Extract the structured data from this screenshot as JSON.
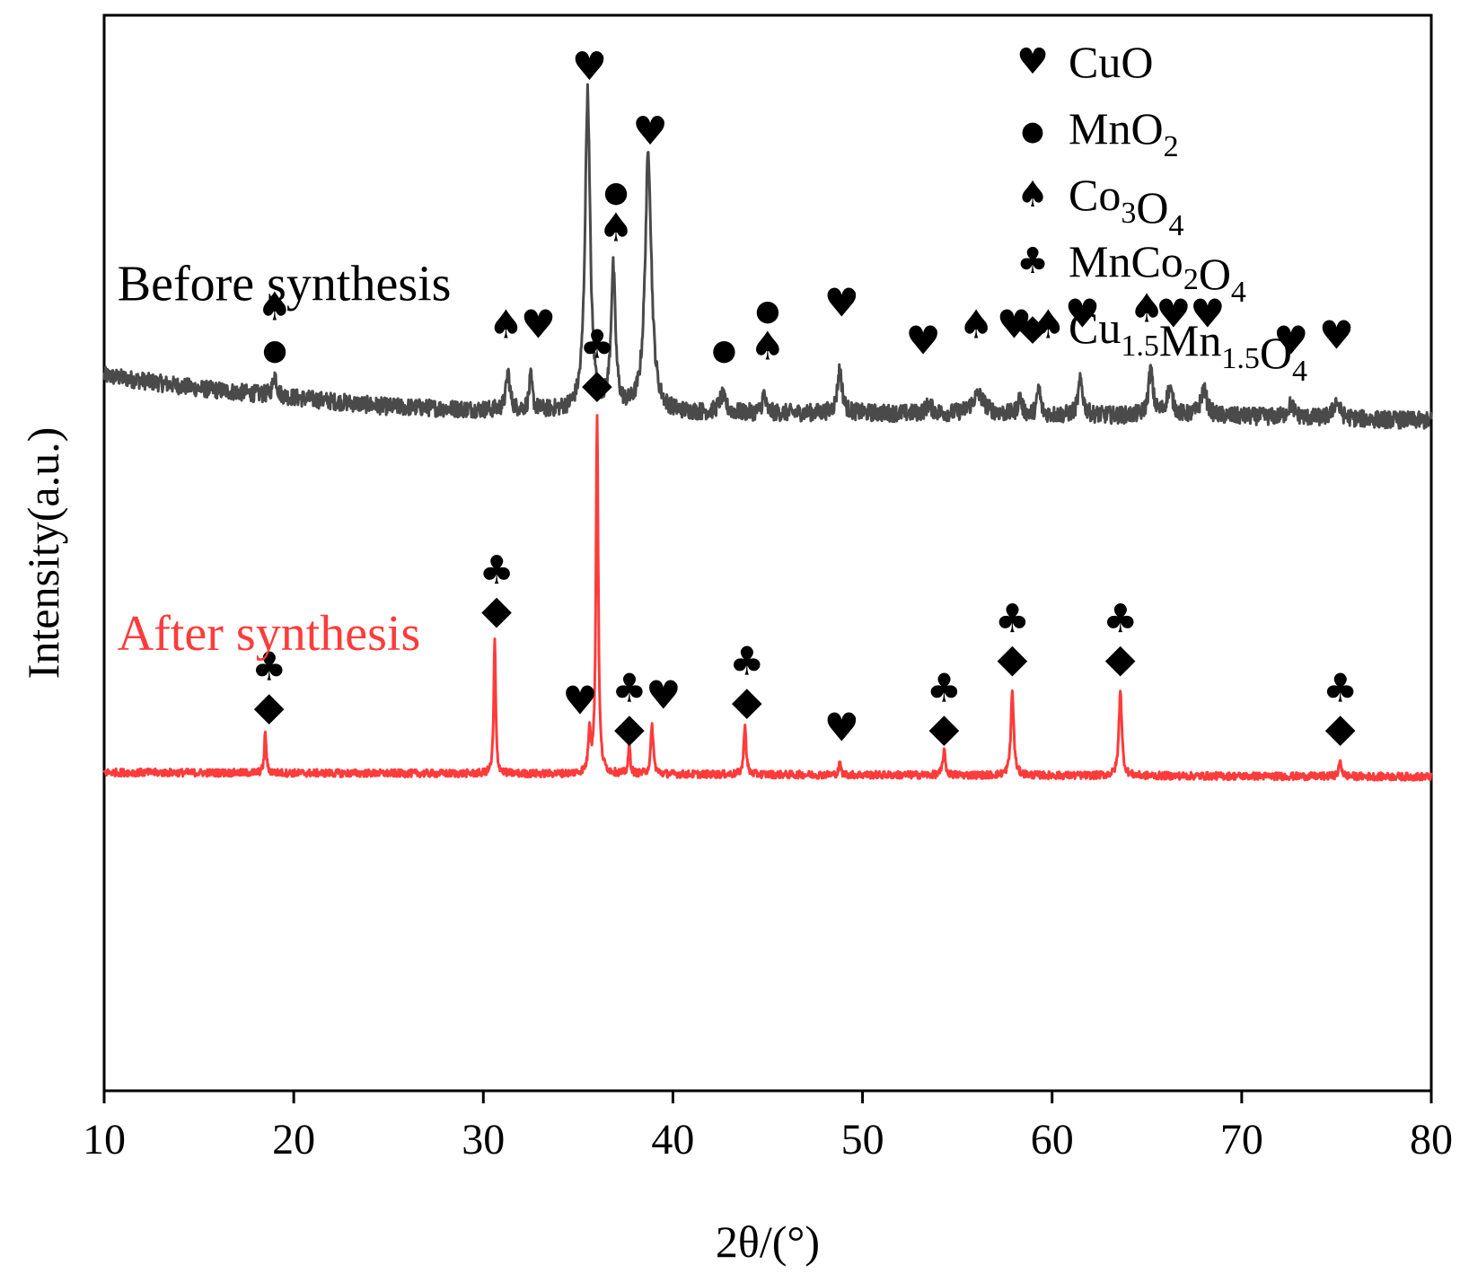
{
  "chart_data": {
    "type": "line",
    "title": "",
    "xlabel": "2θ/(°)",
    "ylabel": "Intensity(a.u.)",
    "xlim": [
      10,
      80
    ],
    "ylim": [
      0,
      100
    ],
    "xticks": [
      10,
      20,
      30,
      40,
      50,
      60,
      70,
      80
    ],
    "xtick_labels": [
      "10",
      "20",
      "30",
      "40",
      "50",
      "60",
      "70",
      "80"
    ],
    "grid": false,
    "legend": {
      "placement": "top-right",
      "entries": [
        {
          "symbol": "heart",
          "label": "CuO",
          "parts": [
            {
              "t": "CuO",
              "sub": false
            }
          ]
        },
        {
          "symbol": "circle",
          "label": "MnO2",
          "parts": [
            {
              "t": "MnO",
              "sub": false
            },
            {
              "t": "2",
              "sub": true
            }
          ]
        },
        {
          "symbol": "spade",
          "label": "Co3O4",
          "parts": [
            {
              "t": "Co",
              "sub": false
            },
            {
              "t": "3",
              "sub": true
            },
            {
              "t": "O",
              "sub": false
            },
            {
              "t": "4",
              "sub": true
            }
          ]
        },
        {
          "symbol": "club",
          "label": "MnCo2O4",
          "parts": [
            {
              "t": "MnCo",
              "sub": false
            },
            {
              "t": "2",
              "sub": true
            },
            {
              "t": "O",
              "sub": false
            },
            {
              "t": "4",
              "sub": true
            }
          ]
        },
        {
          "symbol": "diamond",
          "label": "Cu1.5Mn1.5O4",
          "parts": [
            {
              "t": "Cu",
              "sub": false
            },
            {
              "t": "1.5",
              "sub": true
            },
            {
              "t": "Mn",
              "sub": false
            },
            {
              "t": "1.5",
              "sub": true
            },
            {
              "t": "O",
              "sub": false
            },
            {
              "t": "4",
              "sub": true
            }
          ]
        }
      ]
    },
    "series": [
      {
        "name": "Before synthesis",
        "color": "#4a4a4a",
        "baseline": [
          [
            10,
            66.5
          ],
          [
            15,
            65.3
          ],
          [
            25,
            63.6
          ],
          [
            30,
            63.3
          ],
          [
            40,
            63.0
          ],
          [
            50,
            63.0
          ],
          [
            60,
            62.8
          ],
          [
            70,
            62.7
          ],
          [
            80,
            62.3
          ]
        ],
        "noise": 0.8,
        "peaks": [
          {
            "x": 19.0,
            "height": 2.0,
            "width": 0.12
          },
          {
            "x": 31.3,
            "height": 3.5,
            "width": 0.12
          },
          {
            "x": 32.5,
            "height": 3.0,
            "width": 0.1
          },
          {
            "x": 35.5,
            "height": 29.5,
            "width": 0.16
          },
          {
            "x": 36.85,
            "height": 13.0,
            "width": 0.14
          },
          {
            "x": 38.7,
            "height": 24.0,
            "width": 0.2
          },
          {
            "x": 42.6,
            "height": 1.5,
            "width": 0.2
          },
          {
            "x": 44.8,
            "height": 1.8,
            "width": 0.1
          },
          {
            "x": 48.8,
            "height": 4.0,
            "width": 0.15
          },
          {
            "x": 53.5,
            "height": 0.8,
            "width": 0.2
          },
          {
            "x": 56.1,
            "height": 1.8,
            "width": 0.4
          },
          {
            "x": 58.3,
            "height": 1.6,
            "width": 0.12
          },
          {
            "x": 59.3,
            "height": 2.6,
            "width": 0.1
          },
          {
            "x": 61.5,
            "height": 3.2,
            "width": 0.15
          },
          {
            "x": 65.2,
            "height": 4.2,
            "width": 0.14
          },
          {
            "x": 66.2,
            "height": 2.4,
            "width": 0.2
          },
          {
            "x": 68.0,
            "height": 2.4,
            "width": 0.2
          },
          {
            "x": 72.6,
            "height": 1.2,
            "width": 0.2
          },
          {
            "x": 75.0,
            "height": 1.6,
            "width": 0.2
          }
        ]
      },
      {
        "name": "After synthesis",
        "color": "#ff3b3b",
        "baseline": [
          [
            10,
            29.6
          ],
          [
            80,
            29.2
          ]
        ],
        "noise": 0.35,
        "peaks": [
          {
            "x": 18.5,
            "height": 3.8,
            "width": 0.06
          },
          {
            "x": 30.6,
            "height": 12.5,
            "width": 0.06
          },
          {
            "x": 35.6,
            "height": 4.0,
            "width": 0.07
          },
          {
            "x": 36.0,
            "height": 33.5,
            "width": 0.07
          },
          {
            "x": 37.7,
            "height": 2.7,
            "width": 0.06
          },
          {
            "x": 38.9,
            "height": 4.5,
            "width": 0.08
          },
          {
            "x": 43.8,
            "height": 4.8,
            "width": 0.07
          },
          {
            "x": 48.8,
            "height": 1.0,
            "width": 0.07
          },
          {
            "x": 54.3,
            "height": 2.3,
            "width": 0.08
          },
          {
            "x": 57.9,
            "height": 7.8,
            "width": 0.09
          },
          {
            "x": 63.6,
            "height": 8.0,
            "width": 0.09
          },
          {
            "x": 75.2,
            "height": 1.3,
            "width": 0.09
          }
        ]
      }
    ],
    "annotations": [
      {
        "series": "Before synthesis",
        "x": 19.0,
        "symbols": [
          "spade",
          "circle"
        ],
        "y": 68.0
      },
      {
        "series": "Before synthesis",
        "x": 31.2,
        "symbols": [
          "spade"
        ],
        "y": 70.0
      },
      {
        "series": "Before synthesis",
        "x": 32.9,
        "symbols": [
          "heart"
        ],
        "y": 70.0
      },
      {
        "series": "Before synthesis",
        "x": 35.6,
        "symbols": [
          "heart"
        ],
        "y": 94.0
      },
      {
        "series": "Before synthesis",
        "x": 37.0,
        "symbols": [
          "circle",
          "spade"
        ],
        "y": 79.0
      },
      {
        "series": "Before synthesis",
        "x": 38.8,
        "symbols": [
          "heart"
        ],
        "y": 88.0
      },
      {
        "series": "Before synthesis",
        "x": 42.7,
        "symbols": [
          "circle"
        ],
        "y": 68.0
      },
      {
        "series": "Before synthesis",
        "x": 45.0,
        "symbols": [
          "circle",
          "spade"
        ],
        "y": 68.0
      },
      {
        "series": "Before synthesis",
        "x": 48.9,
        "symbols": [
          "heart"
        ],
        "y": 72.0
      },
      {
        "series": "Before synthesis",
        "x": 53.2,
        "symbols": [
          "heart"
        ],
        "y": 68.5
      },
      {
        "series": "Before synthesis",
        "x": 56.0,
        "symbols": [
          "spade"
        ],
        "y": 70.0
      },
      {
        "series": "Before synthesis",
        "x": 58.0,
        "symbols": [
          "heart"
        ],
        "y": 70.0
      },
      {
        "series": "Before synthesis",
        "x": 59.8,
        "symbols": [
          "spade"
        ],
        "y": 70.0
      },
      {
        "series": "Before synthesis",
        "x": 61.6,
        "symbols": [
          "heart"
        ],
        "y": 71.0
      },
      {
        "series": "Before synthesis",
        "x": 65.0,
        "symbols": [
          "spade"
        ],
        "y": 71.5
      },
      {
        "series": "Before synthesis",
        "x": 66.4,
        "symbols": [
          "heart"
        ],
        "y": 71.0
      },
      {
        "series": "Before synthesis",
        "x": 68.2,
        "symbols": [
          "heart"
        ],
        "y": 71.0
      },
      {
        "series": "Before synthesis",
        "x": 72.6,
        "symbols": [
          "heart"
        ],
        "y": 68.5
      },
      {
        "series": "Before synthesis",
        "x": 75.0,
        "symbols": [
          "heart"
        ],
        "y": 69.0
      },
      {
        "series": "After synthesis",
        "x": 18.7,
        "symbols": [
          "club",
          "diamond"
        ],
        "y": 34.5
      },
      {
        "series": "After synthesis",
        "x": 30.7,
        "symbols": [
          "club",
          "diamond"
        ],
        "y": 43.5
      },
      {
        "series": "After synthesis",
        "x": 36.0,
        "symbols": [
          "club",
          "diamond"
        ],
        "y": 64.5
      },
      {
        "series": "After synthesis",
        "x": 35.1,
        "symbols": [
          "heart"
        ],
        "y": 35.0
      },
      {
        "series": "After synthesis",
        "x": 37.7,
        "symbols": [
          "club",
          "diamond"
        ],
        "y": 32.5
      },
      {
        "series": "After synthesis",
        "x": 39.5,
        "symbols": [
          "heart"
        ],
        "y": 35.5
      },
      {
        "series": "After synthesis",
        "x": 43.9,
        "symbols": [
          "club",
          "diamond"
        ],
        "y": 35.0
      },
      {
        "series": "After synthesis",
        "x": 48.9,
        "symbols": [
          "heart"
        ],
        "y": 32.5
      },
      {
        "series": "After synthesis",
        "x": 54.3,
        "symbols": [
          "club",
          "diamond"
        ],
        "y": 32.5
      },
      {
        "series": "After synthesis",
        "x": 57.9,
        "symbols": [
          "club",
          "diamond"
        ],
        "y": 39.0
      },
      {
        "series": "After synthesis",
        "x": 63.6,
        "symbols": [
          "club",
          "diamond"
        ],
        "y": 39.0
      },
      {
        "series": "After synthesis",
        "x": 75.2,
        "symbols": [
          "club",
          "diamond"
        ],
        "y": 32.5
      }
    ],
    "curve_labels": [
      {
        "text": "Before synthesis",
        "color": "#000000",
        "x": 10.7,
        "y": 73.5
      },
      {
        "text": "After synthesis",
        "color": "#ff3b3b",
        "x": 10.7,
        "y": 41.0
      }
    ]
  },
  "symbols": {
    "heart": "♥",
    "circle": "●",
    "spade": "♠",
    "club": "♣",
    "diamond": "◆"
  }
}
